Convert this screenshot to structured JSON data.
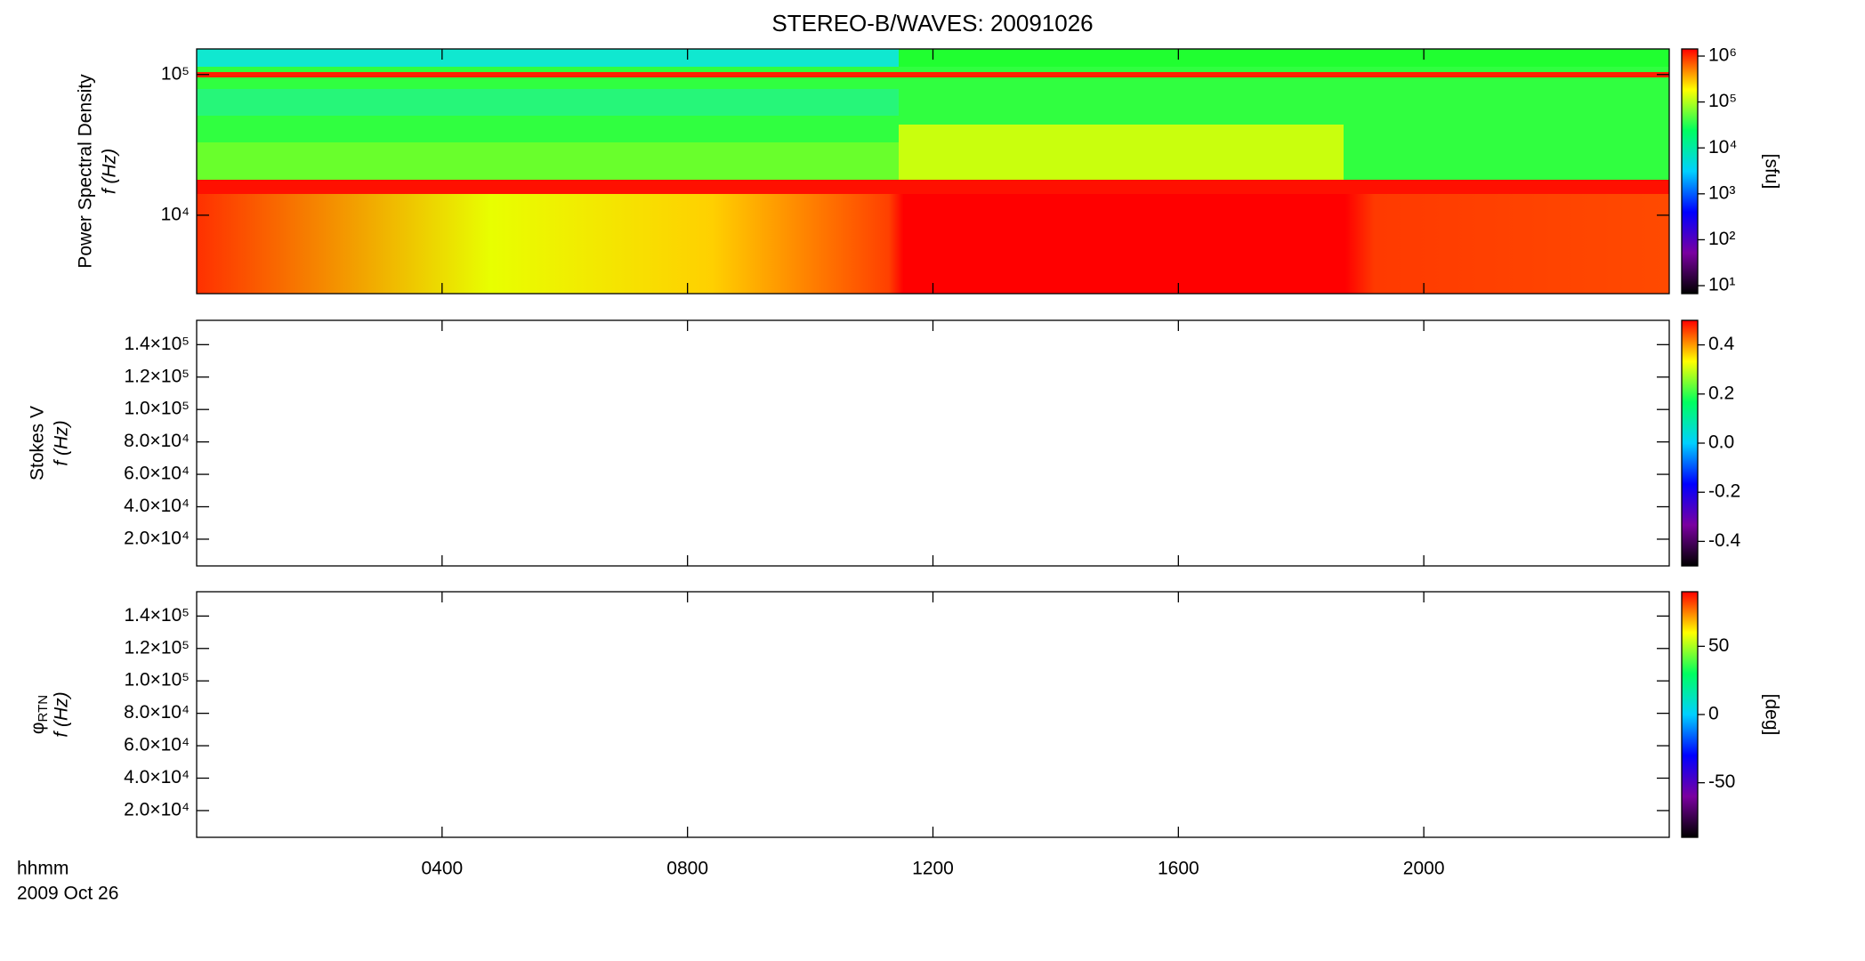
{
  "chart_data": [
    {
      "type": "spectrogram",
      "title": "STEREO-B/WAVES: 20091026",
      "ylabel": "Power Spectral Density",
      "ylabel2": "f (Hz)",
      "ylim": [
        2770,
        152000
      ],
      "ylog": true,
      "yticks": [
        {
          "value": 10000,
          "label": "10⁴"
        },
        {
          "value": 100000,
          "label": "10⁵"
        }
      ],
      "xlim": [
        0,
        24
      ],
      "xticks": [
        {
          "value": 4,
          "label": "0400"
        },
        {
          "value": 8,
          "label": "0800"
        },
        {
          "value": 12,
          "label": "1200"
        },
        {
          "value": 16,
          "label": "1600"
        },
        {
          "value": 20,
          "label": "2000"
        }
      ],
      "colorbar_lim": [
        6.7,
        1430000
      ],
      "colorbar_log": true,
      "colorbar_ticks": [
        {
          "value": 10,
          "label": "10¹"
        },
        {
          "value": 100,
          "label": "10²"
        },
        {
          "value": 1000,
          "label": "10³"
        },
        {
          "value": 10000,
          "label": "10⁴"
        },
        {
          "value": 100000,
          "label": "10⁵"
        },
        {
          "value": 1000000,
          "label": "10⁶"
        }
      ],
      "colorbar_label": "[sfu]",
      "colormap": [
        "#000000",
        "#7a00a0",
        "#0000ff",
        "#00d0ff",
        "#00ff60",
        "#ffff00",
        "#ff0000"
      ]
    },
    {
      "type": "spectrogram",
      "ylabel": "Stokes V",
      "ylabel2": "f (Hz)",
      "ylim": [
        3500,
        155000
      ],
      "yticks": [
        {
          "value": 20000,
          "label": "2.0×10⁴"
        },
        {
          "value": 40000,
          "label": "4.0×10⁴"
        },
        {
          "value": 60000,
          "label": "6.0×10⁴"
        },
        {
          "value": 80000,
          "label": "8.0×10⁴"
        },
        {
          "value": 100000,
          "label": "1.0×10⁵"
        },
        {
          "value": 120000,
          "label": "1.2×10⁵"
        },
        {
          "value": 140000,
          "label": "1.4×10⁵"
        }
      ],
      "xlim": [
        0,
        24
      ],
      "colorbar_lim": [
        -0.5,
        0.5
      ],
      "colorbar_ticks": [
        -0.4,
        -0.2,
        {
          "value": 0,
          "label": "0.0"
        },
        0.2,
        0.4
      ],
      "colormap": [
        "#000000",
        "#7a00a0",
        "#0000ff",
        "#00d0ff",
        "#00ff60",
        "#ffff00",
        "#ff0000"
      ]
    },
    {
      "type": "spectrogram",
      "ylabel_symbol": "φ",
      "ylabel_subscript": "RTN",
      "ylabel2": "f (Hz)",
      "ylim": [
        3500,
        155000
      ],
      "yticks": [
        {
          "value": 20000,
          "label": "2.0×10⁴"
        },
        {
          "value": 40000,
          "label": "4.0×10⁴"
        },
        {
          "value": 60000,
          "label": "6.0×10⁴"
        },
        {
          "value": 80000,
          "label": "8.0×10⁴"
        },
        {
          "value": 100000,
          "label": "1.0×10⁵"
        },
        {
          "value": 120000,
          "label": "1.2×10⁵"
        },
        {
          "value": 140000,
          "label": "1.4×10⁵"
        }
      ],
      "xlim": [
        0,
        24
      ],
      "xticks": [
        {
          "value": 4,
          "label": "0400"
        },
        {
          "value": 8,
          "label": "0800"
        },
        {
          "value": 12,
          "label": "1200"
        },
        {
          "value": 16,
          "label": "1600"
        },
        {
          "value": 20,
          "label": "2000"
        }
      ],
      "colorbar_lim": [
        -90,
        90
      ],
      "colorbar_ticks": [
        -50,
        0,
        50
      ],
      "colorbar_label": "[deg]",
      "colormap": [
        "#000000",
        "#7a00a0",
        "#0000ff",
        "#00d0ff",
        "#00ff60",
        "#ffff00",
        "#ff0000"
      ],
      "time_label": "hhmm",
      "date_label": "2009 Oct 26"
    }
  ]
}
